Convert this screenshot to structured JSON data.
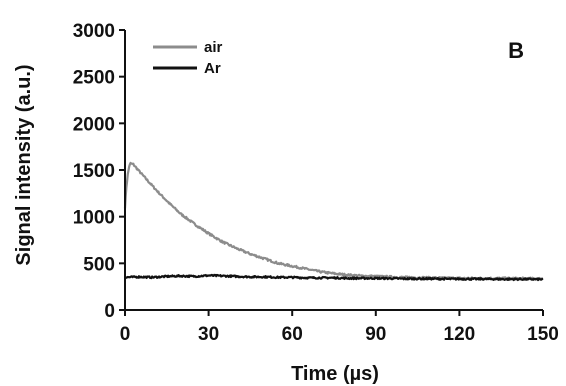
{
  "chart_data": {
    "type": "line",
    "title": "",
    "panel_label": "B",
    "xlabel": "Time (µs)",
    "ylabel": "Signal intensity (a.u.)",
    "xlim": [
      0,
      150
    ],
    "ylim": [
      0,
      3000
    ],
    "x_ticks": [
      0,
      30,
      60,
      90,
      120,
      150
    ],
    "y_ticks": [
      0,
      500,
      1000,
      1500,
      2000,
      2500,
      3000
    ],
    "grid": false,
    "legend_position": "top-left",
    "series": [
      {
        "name": "air",
        "color": "#8c8c8c",
        "x": [
          0,
          0.5,
          1,
          1.5,
          2,
          3,
          5,
          8,
          12,
          16,
          20,
          25,
          30,
          35,
          40,
          45,
          50,
          55,
          60,
          65,
          70,
          75,
          80,
          85,
          90,
          95,
          100,
          110,
          120,
          130,
          140,
          150
        ],
        "y": [
          1100,
          1320,
          1450,
          1540,
          1570,
          1560,
          1490,
          1390,
          1260,
          1140,
          1030,
          920,
          820,
          730,
          660,
          600,
          550,
          500,
          470,
          440,
          410,
          390,
          375,
          365,
          360,
          355,
          350,
          345,
          340,
          340,
          338,
          335
        ]
      },
      {
        "name": "Ar",
        "color": "#111111",
        "x": [
          0,
          5,
          10,
          15,
          20,
          25,
          30,
          35,
          40,
          45,
          50,
          55,
          60,
          65,
          70,
          75,
          80,
          85,
          90,
          95,
          100,
          105,
          110,
          115,
          120,
          125,
          130,
          135,
          140,
          145,
          150
        ],
        "y": [
          350,
          355,
          350,
          360,
          365,
          360,
          370,
          365,
          360,
          355,
          355,
          350,
          350,
          345,
          345,
          345,
          340,
          340,
          340,
          338,
          335,
          335,
          335,
          333,
          333,
          332,
          332,
          330,
          330,
          330,
          328
        ]
      }
    ]
  }
}
